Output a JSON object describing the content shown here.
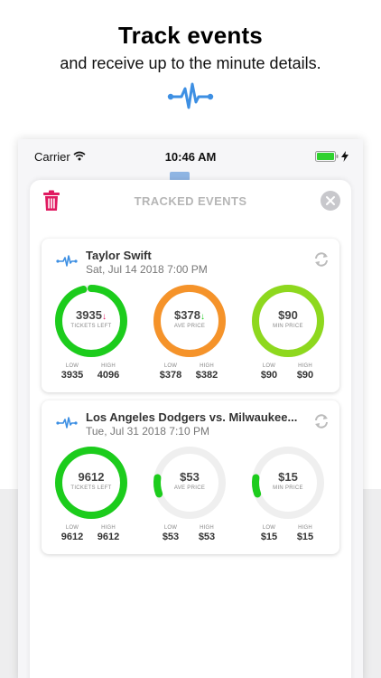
{
  "header": {
    "title": "Track events",
    "subtitle": "and receive up to the minute details.",
    "icon": "pulse-icon"
  },
  "statusbar": {
    "carrier": "Carrier",
    "time": "10:46 AM"
  },
  "modal": {
    "title": "TRACKED EVENTS"
  },
  "colors": {
    "green": "#1ccc1c",
    "orange": "#f5932a",
    "lime": "#8ed81e",
    "track": "#efefef",
    "blue": "#3d8fe3",
    "red": "#e01960"
  },
  "events": [
    {
      "name": "Taylor Swift",
      "date": "Sat, Jul 14 2018 7:00 PM",
      "gauges": [
        {
          "value": "3935",
          "arrow": "↓",
          "label": "TICKETS LEFT",
          "low_label": "LOW",
          "high_label": "HIGH",
          "low": "3935",
          "high": "4096",
          "fill": 0.96,
          "color": "green",
          "arrow_color": "#e01960"
        },
        {
          "value": "$378",
          "arrow": "↓",
          "label": "AVE PRICE",
          "low_label": "LOW",
          "high_label": "HIGH",
          "low": "$378",
          "high": "$382",
          "fill": 0.99,
          "color": "orange",
          "arrow_color": "#1ccc1c"
        },
        {
          "value": "$90",
          "arrow": "",
          "label": "MIN PRICE",
          "low_label": "LOW",
          "high_label": "HIGH",
          "low": "$90",
          "high": "$90",
          "fill": 1.0,
          "color": "lime",
          "arrow_color": ""
        }
      ]
    },
    {
      "name": "Los Angeles Dodgers vs. Milwaukee...",
      "date": "Tue, Jul 31 2018 7:10 PM",
      "gauges": [
        {
          "value": "9612",
          "arrow": "",
          "label": "TICKETS LEFT",
          "low_label": "LOW",
          "high_label": "HIGH",
          "low": "9612",
          "high": "9612",
          "fill": 1.0,
          "color": "green",
          "arrow_color": ""
        },
        {
          "value": "$53",
          "arrow": "",
          "label": "AVE PRICE",
          "low_label": "LOW",
          "high_label": "HIGH",
          "low": "$53",
          "high": "$53",
          "fill": 0.08,
          "color": "green",
          "arrow_color": ""
        },
        {
          "value": "$15",
          "arrow": "",
          "label": "MIN PRICE",
          "low_label": "LOW",
          "high_label": "HIGH",
          "low": "$15",
          "high": "$15",
          "fill": 0.08,
          "color": "green",
          "arrow_color": ""
        }
      ]
    }
  ]
}
